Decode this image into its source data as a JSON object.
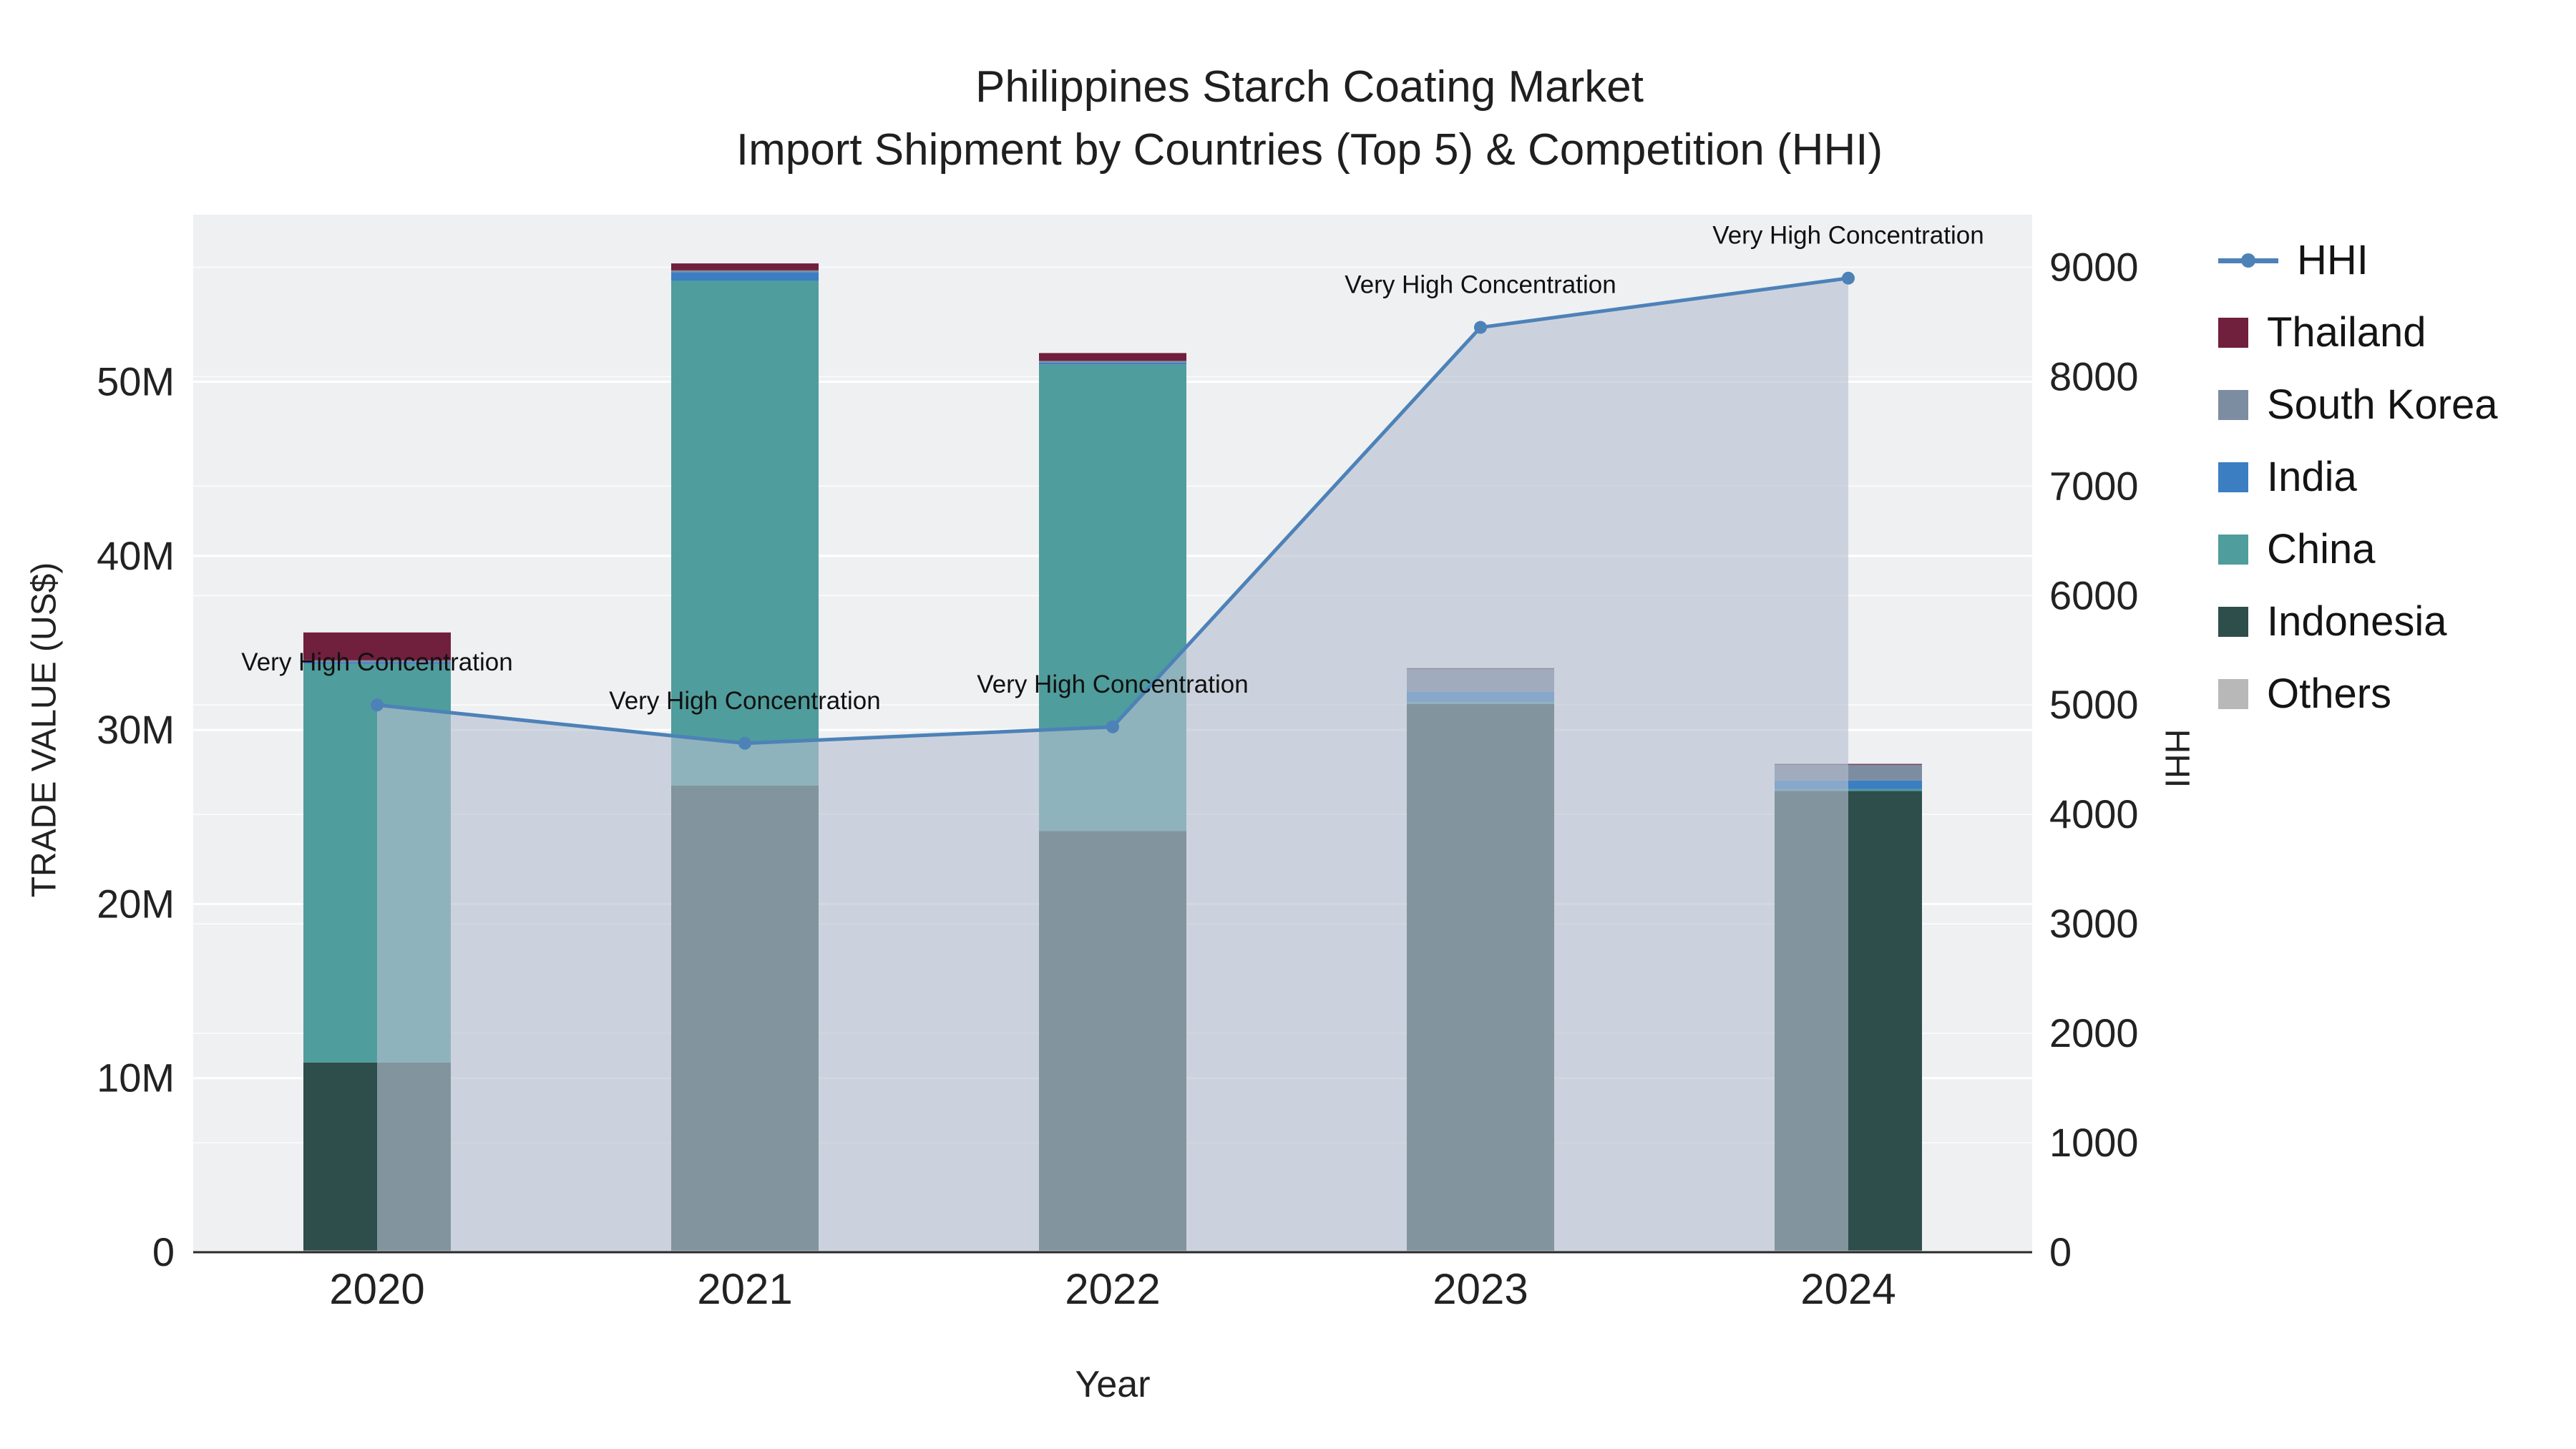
{
  "title": {
    "line1": "Philippines Starch Coating Market",
    "line2": "Import Shipment by Countries (Top 5) & Competition (HHI)"
  },
  "axes": {
    "x_title": "Year",
    "left_title": "TRADE VALUE (US$)",
    "right_title": "HHI",
    "x_labels": [
      "2020",
      "2021",
      "2022",
      "2023",
      "2024"
    ],
    "left_ticks": {
      "labels": [
        "0",
        "10M",
        "20M",
        "30M",
        "40M",
        "50M"
      ],
      "values_musd": [
        0,
        10,
        20,
        30,
        40,
        50
      ]
    },
    "right_ticks": {
      "labels": [
        "0",
        "1000",
        "2000",
        "3000",
        "4000",
        "5000",
        "6000",
        "7000",
        "8000",
        "9000"
      ],
      "values": [
        0,
        1000,
        2000,
        3000,
        4000,
        5000,
        6000,
        7000,
        8000,
        9000
      ]
    }
  },
  "chart_data": {
    "type": "bar",
    "subtype": "stacked-bars-with-line-area-overlay",
    "unit_bars": "million USD (left axis)",
    "categories": [
      "2020",
      "2021",
      "2022",
      "2023",
      "2024"
    ],
    "stack_order_bottom_to_top": [
      "Others",
      "Indonesia",
      "China",
      "India",
      "South Korea",
      "Thailand"
    ],
    "series": [
      {
        "name": "Others",
        "color": "#b8b8b8",
        "values_musd": [
          0.1,
          0.1,
          0.1,
          0.1,
          0.1
        ]
      },
      {
        "name": "Indonesia",
        "color": "#2e4e4b",
        "values_musd": [
          10.8,
          26.7,
          24.1,
          31.4,
          26.4
        ]
      },
      {
        "name": "China",
        "color": "#4f9d9c",
        "values_musd": [
          22.9,
          29.0,
          26.8,
          0.1,
          0.1
        ]
      },
      {
        "name": "India",
        "color": "#3c7ec2",
        "values_musd": [
          0.1,
          0.5,
          0.1,
          0.6,
          0.5
        ]
      },
      {
        "name": "South Korea",
        "color": "#7d8da1",
        "values_musd": [
          0.1,
          0.1,
          0.1,
          1.3,
          0.9
        ]
      },
      {
        "name": "Thailand",
        "color": "#701f3d",
        "values_musd": [
          1.6,
          0.4,
          0.45,
          0.05,
          0.05
        ]
      }
    ],
    "line_series": {
      "name": "HHI",
      "axis": "right",
      "color": "#4d82b8",
      "area_fill_color": "#b6c0d0",
      "area_fill_opacity": 0.62,
      "values": [
        5000,
        4650,
        4800,
        8450,
        8900
      ]
    },
    "annotations": {
      "text": "Very High Concentration",
      "points": [
        "2020",
        "2021",
        "2022",
        "2023",
        "2024"
      ]
    },
    "ylim_left_musd": [
      0,
      59.6
    ],
    "ylim_right": [
      0,
      9480
    ],
    "plot_bg": "#eef0f2",
    "grid_color": "#ffffff",
    "axis_line_color": "#2a2a2a"
  },
  "legend": {
    "items": [
      {
        "label": "HHI",
        "color": "#4d82b8",
        "swatch": "line"
      },
      {
        "label": "Thailand",
        "color": "#701f3d",
        "swatch": "square"
      },
      {
        "label": "South Korea",
        "color": "#7d8da1",
        "swatch": "square"
      },
      {
        "label": "India",
        "color": "#3c7ec2",
        "swatch": "square"
      },
      {
        "label": "China",
        "color": "#4f9d9c",
        "swatch": "square"
      },
      {
        "label": "Indonesia",
        "color": "#2e4e4b",
        "swatch": "square"
      },
      {
        "label": "Others",
        "color": "#b8b8b8",
        "swatch": "square"
      }
    ]
  }
}
